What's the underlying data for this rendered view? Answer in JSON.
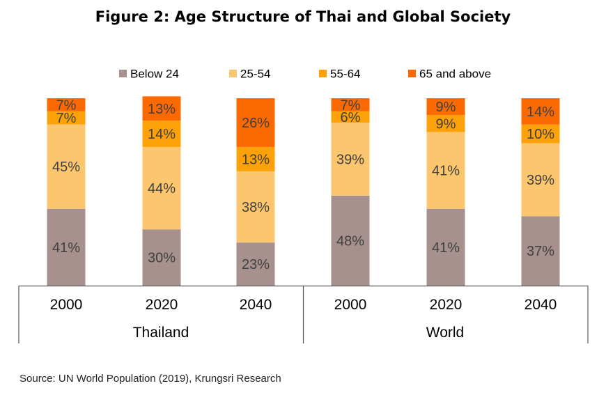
{
  "chart_data": {
    "type": "bar",
    "stacked": true,
    "title": "Figure 2: Age Structure of Thai and Global Society",
    "source": "Source: UN World Population (2019), Krungsri Research",
    "legend_position": "top",
    "groups": [
      {
        "name": "Thailand",
        "categories": [
          "2000",
          "2020",
          "2040"
        ]
      },
      {
        "name": "World",
        "categories": [
          "2000",
          "2020",
          "2040"
        ]
      }
    ],
    "categories": [
      "2000",
      "2020",
      "2040",
      "2000",
      "2020",
      "2040"
    ],
    "ylim": [
      0,
      100
    ],
    "series": [
      {
        "name": "Below 24",
        "color": "#a6918f",
        "values": [
          41,
          30,
          23,
          48,
          41,
          37
        ]
      },
      {
        "name": "25-54",
        "color": "#fcc66f",
        "values": [
          45,
          44,
          38,
          39,
          41,
          39
        ]
      },
      {
        "name": "55-64",
        "color": "#fca10a",
        "values": [
          7,
          14,
          13,
          6,
          9,
          10
        ]
      },
      {
        "name": "65 and above",
        "color": "#fb6a02",
        "values": [
          7,
          13,
          26,
          7,
          9,
          14
        ]
      }
    ]
  }
}
